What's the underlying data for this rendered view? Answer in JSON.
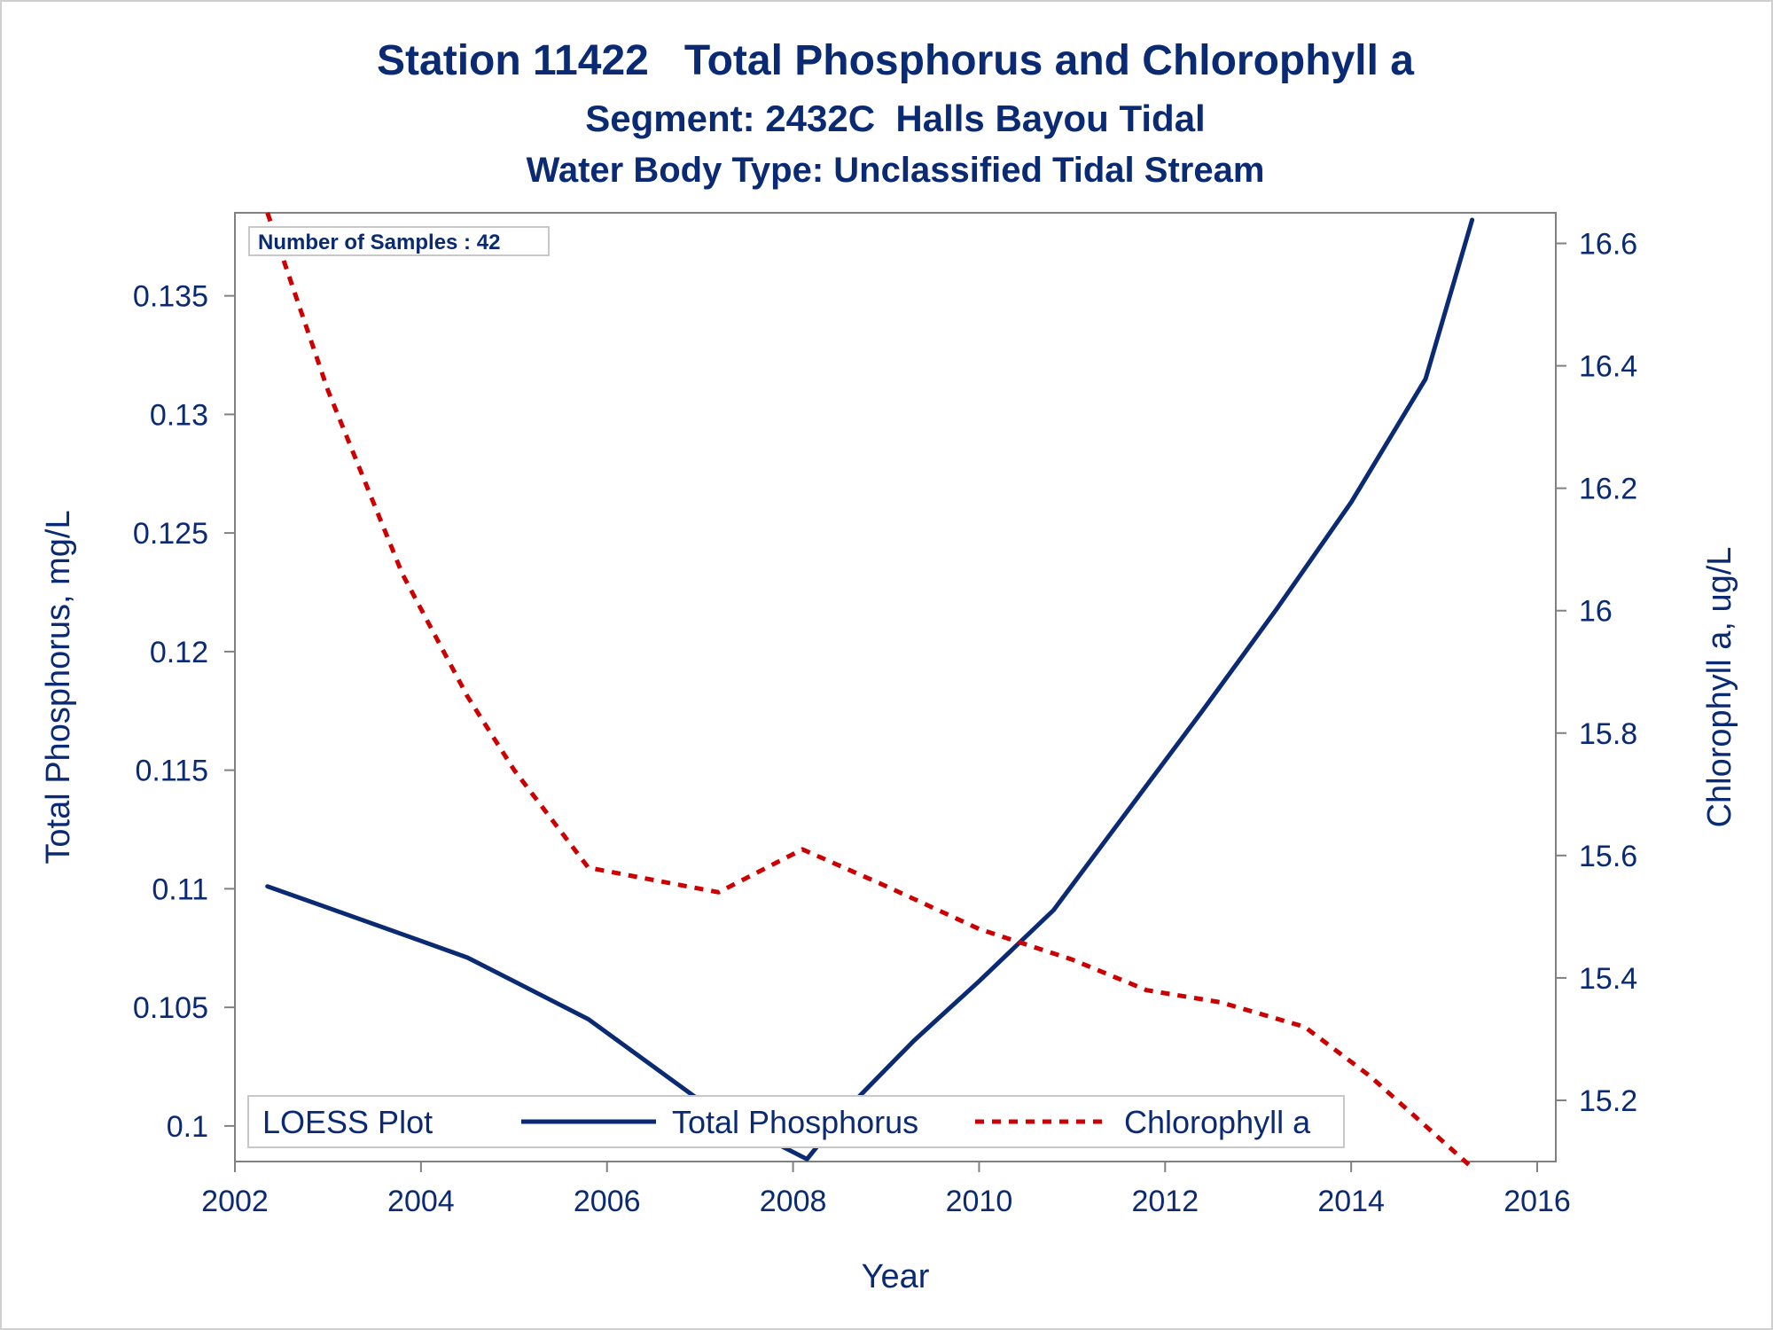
{
  "titles": {
    "line1": "Station 11422   Total Phosphorus and Chlorophyll a",
    "line2": "Segment: 2432C  Halls Bayou Tidal",
    "line3": "Water Body Type: Unclassified Tidal Stream"
  },
  "inset_label": "Number of Samples : 42",
  "legend": {
    "title": "LOESS Plot",
    "items": [
      "Total Phosphorus",
      "Chlorophyll a"
    ]
  },
  "colors": {
    "text": "#0b2a74",
    "series1": "#0b2a74",
    "series2": "#cc0000",
    "axis": "#808080"
  },
  "chart_data": {
    "type": "line",
    "xlabel": "Year",
    "ylabel": "Total Phosphorus, mg/L",
    "y2label": "Chlorophyll a, ug/L",
    "xlim": [
      2002.0,
      2016.2
    ],
    "ylim": [
      0.0985,
      0.1385
    ],
    "y2lim": [
      15.1,
      16.65
    ],
    "xticks": [
      2002,
      2004,
      2006,
      2008,
      2010,
      2012,
      2014,
      2016
    ],
    "yticks": [
      0.1,
      0.105,
      0.11,
      0.115,
      0.12,
      0.125,
      0.13,
      0.135
    ],
    "ytick_labels": [
      "0.1",
      "0.105",
      "0.11",
      "0.115",
      "0.12",
      "0.125",
      "0.13",
      "0.135"
    ],
    "y2ticks": [
      15.2,
      15.4,
      15.6,
      15.8,
      16.0,
      16.2,
      16.4,
      16.6
    ],
    "y2tick_labels": [
      "15.2",
      "15.4",
      "15.6",
      "15.8",
      "16",
      "16.2",
      "16.4",
      "16.6"
    ],
    "series": [
      {
        "name": "Total Phosphorus",
        "axis": "left",
        "style": "solid",
        "x": [
          2002.35,
          2003.0,
          2004.0,
          2004.5,
          2005.0,
          2005.8,
          2006.5,
          2007.2,
          2008.15,
          2008.6,
          2009.3,
          2010.0,
          2010.8,
          2011.6,
          2012.4,
          2013.2,
          2014.0,
          2014.8,
          2015.3
        ],
        "y": [
          0.1101,
          0.1092,
          0.1078,
          0.1071,
          0.1061,
          0.1045,
          0.1025,
          0.1005,
          0.0986,
          0.1008,
          0.1036,
          0.1061,
          0.1091,
          0.1133,
          0.1175,
          0.1218,
          0.1263,
          0.1315,
          0.1382
        ]
      },
      {
        "name": "Chlorophyll a",
        "axis": "right",
        "style": "dashed",
        "x": [
          2002.35,
          2003.0,
          2003.8,
          2004.5,
          2005.0,
          2005.8,
          2006.5,
          2007.2,
          2008.1,
          2009.0,
          2010.0,
          2011.0,
          2011.8,
          2012.6,
          2013.5,
          2014.2,
          2015.3
        ],
        "y": [
          16.65,
          16.36,
          16.06,
          15.86,
          15.74,
          15.58,
          15.56,
          15.54,
          15.61,
          15.55,
          15.48,
          15.43,
          15.38,
          15.36,
          15.32,
          15.24,
          15.09
        ]
      }
    ],
    "grid": false,
    "legend_position": "bottom-inside"
  }
}
